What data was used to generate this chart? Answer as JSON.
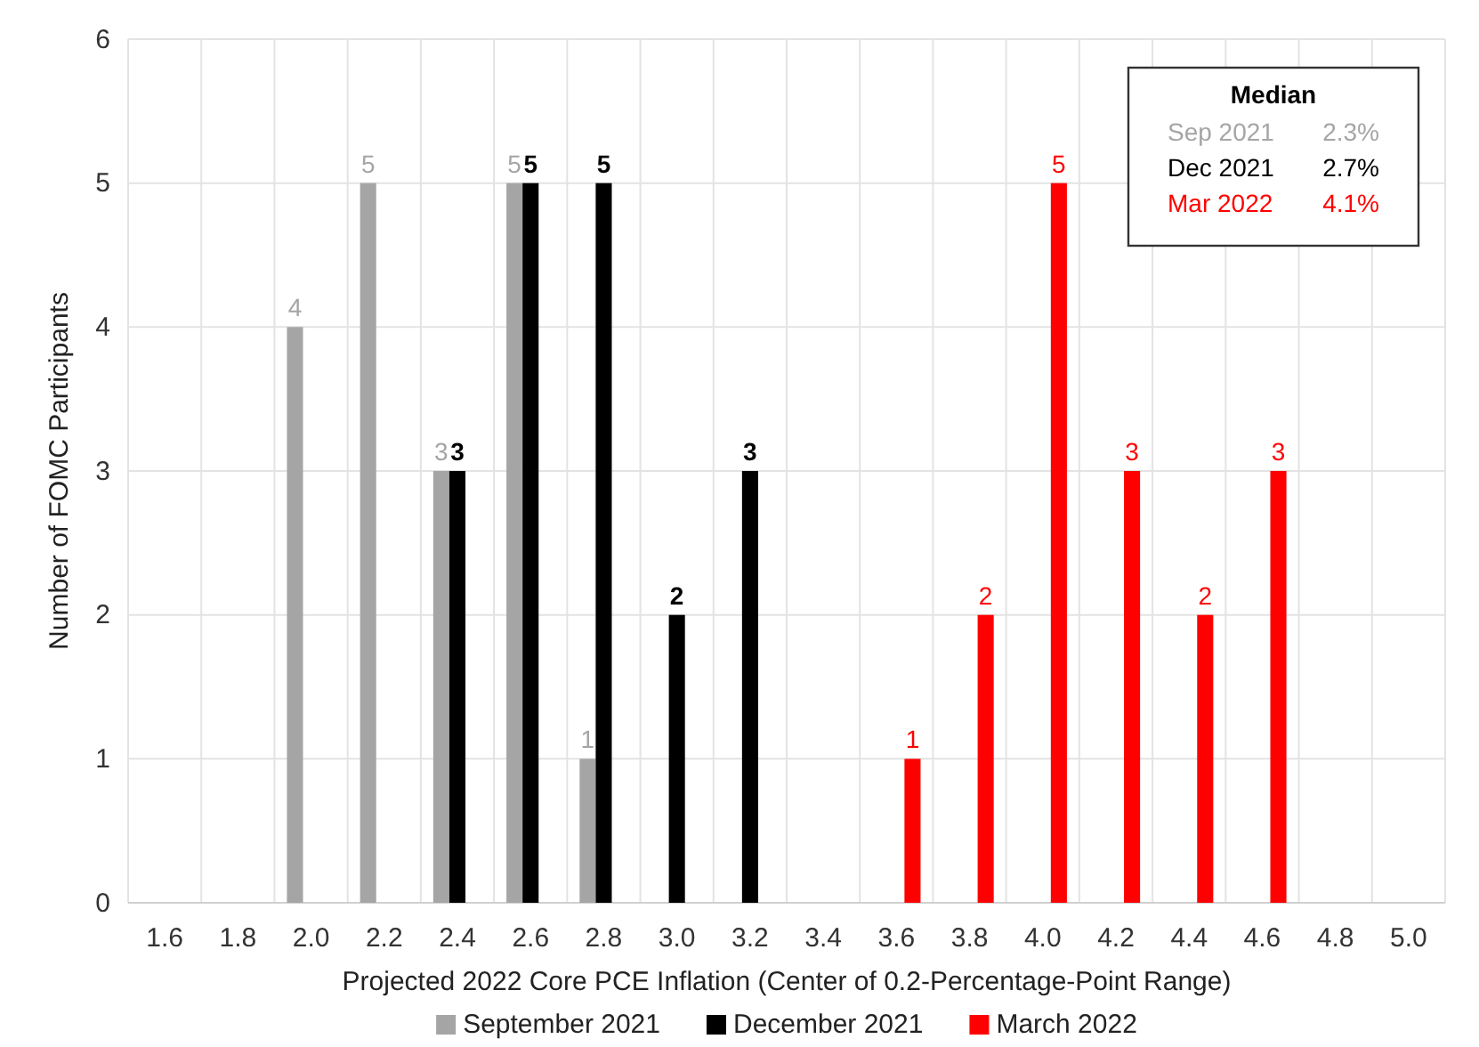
{
  "chart_data": {
    "type": "bar",
    "xlabel": "Projected 2022 Core PCE Inflation (Center of 0.2-Percentage-Point Range)",
    "ylabel": "Number of FOMC Participants",
    "categories": [
      "1.6",
      "1.8",
      "2.0",
      "2.2",
      "2.4",
      "2.6",
      "2.8",
      "3.0",
      "3.2",
      "3.4",
      "3.6",
      "3.8",
      "4.0",
      "4.2",
      "4.4",
      "4.6",
      "4.8",
      "5.0"
    ],
    "series": [
      {
        "name": "September 2021",
        "color": "#a5a5a5",
        "values": [
          0,
          0,
          4,
          5,
          3,
          5,
          1,
          0,
          0,
          0,
          0,
          0,
          0,
          0,
          0,
          0,
          0,
          0
        ],
        "value_labels": [
          null,
          null,
          "4",
          "5",
          "3",
          "5",
          "1",
          null,
          null,
          null,
          null,
          null,
          null,
          null,
          null,
          null,
          null,
          null
        ]
      },
      {
        "name": "December 2021",
        "color": "#000000",
        "values": [
          0,
          0,
          0,
          0,
          3,
          5,
          5,
          2,
          3,
          0,
          0,
          0,
          0,
          0,
          0,
          0,
          0,
          0
        ],
        "value_labels": [
          null,
          null,
          null,
          null,
          "3",
          "5",
          "5",
          "2",
          "3",
          null,
          null,
          null,
          null,
          null,
          null,
          null,
          null,
          null
        ]
      },
      {
        "name": "March 2022",
        "color": "#ff0000",
        "values": [
          0,
          0,
          0,
          0,
          0,
          0,
          0,
          0,
          0,
          0,
          1,
          2,
          5,
          3,
          2,
          3,
          0,
          0
        ],
        "value_labels": [
          null,
          null,
          null,
          null,
          null,
          null,
          null,
          null,
          null,
          null,
          "1",
          "2",
          "5",
          "3",
          "2",
          "3",
          null,
          null
        ]
      }
    ],
    "ylim": [
      0,
      6
    ],
    "yticks": [
      0,
      1,
      2,
      3,
      4,
      5,
      6
    ],
    "grid": true,
    "legend": "bottom",
    "annotations": [
      "Median",
      "Sep 2021",
      "2.3%",
      "Dec 2021",
      "2.7%",
      "Mar 2022",
      "4.1%"
    ]
  }
}
